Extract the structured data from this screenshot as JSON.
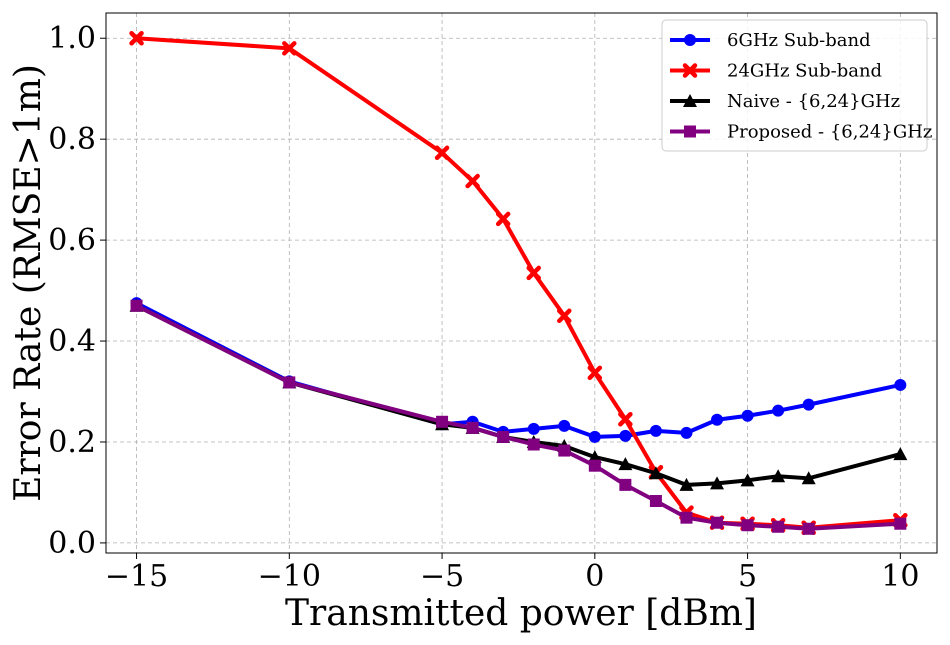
{
  "chart_data": {
    "type": "line",
    "xlabel": "Transmitted power [dBm]",
    "ylabel": "Error Rate (RMSE>1m)",
    "xlim": [
      -16,
      11.2
    ],
    "ylim": [
      -0.02,
      1.05
    ],
    "xticks": [
      -15,
      -10,
      -5,
      0,
      5,
      10
    ],
    "xtick_labels": [
      "−15",
      "−10",
      "−5",
      "0",
      "5",
      "10"
    ],
    "yticks": [
      0.0,
      0.2,
      0.4,
      0.6,
      0.8,
      1.0
    ],
    "ytick_labels": [
      "0.0",
      "0.2",
      "0.4",
      "0.6",
      "0.8",
      "1.0"
    ],
    "grid": true,
    "legend_position": "top-right",
    "series": [
      {
        "name": "6GHz Sub-band",
        "color": "#0000ff",
        "marker": "circle",
        "x": [
          -15,
          -10,
          -5,
          -4,
          -3,
          -2,
          -1,
          0,
          1,
          2,
          3,
          4,
          5,
          6,
          7,
          10
        ],
        "y": [
          0.475,
          0.32,
          0.235,
          0.24,
          0.22,
          0.226,
          0.232,
          0.21,
          0.212,
          0.222,
          0.218,
          0.244,
          0.252,
          0.262,
          0.274,
          0.313
        ]
      },
      {
        "name": "24GHz Sub-band",
        "color": "#ff0000",
        "marker": "x",
        "x": [
          -15,
          -10,
          -5,
          -4,
          -3,
          -2,
          -1,
          0,
          1,
          2,
          3,
          4,
          5,
          6,
          7,
          10
        ],
        "y": [
          1.0,
          0.98,
          0.773,
          0.717,
          0.642,
          0.535,
          0.45,
          0.337,
          0.245,
          0.14,
          0.06,
          0.04,
          0.038,
          0.035,
          0.03,
          0.045
        ]
      },
      {
        "name": "Naive - {6,24}GHz",
        "color": "#000000",
        "marker": "triangle",
        "x": [
          -15,
          -10,
          -5,
          -4,
          -3,
          -2,
          -1,
          0,
          1,
          2,
          3,
          4,
          5,
          6,
          7,
          10
        ],
        "y": [
          0.47,
          0.318,
          0.235,
          0.228,
          0.21,
          0.2,
          0.192,
          0.17,
          0.156,
          0.138,
          0.115,
          0.118,
          0.124,
          0.132,
          0.128,
          0.176
        ]
      },
      {
        "name": "Proposed - {6,24}GHz",
        "color": "#800080",
        "marker": "square",
        "x": [
          -15,
          -10,
          -5,
          -4,
          -3,
          -2,
          -1,
          0,
          1,
          2,
          3,
          4,
          5,
          6,
          7,
          10
        ],
        "y": [
          0.47,
          0.318,
          0.24,
          0.228,
          0.21,
          0.195,
          0.183,
          0.153,
          0.115,
          0.083,
          0.05,
          0.04,
          0.035,
          0.032,
          0.028,
          0.038
        ]
      }
    ]
  }
}
